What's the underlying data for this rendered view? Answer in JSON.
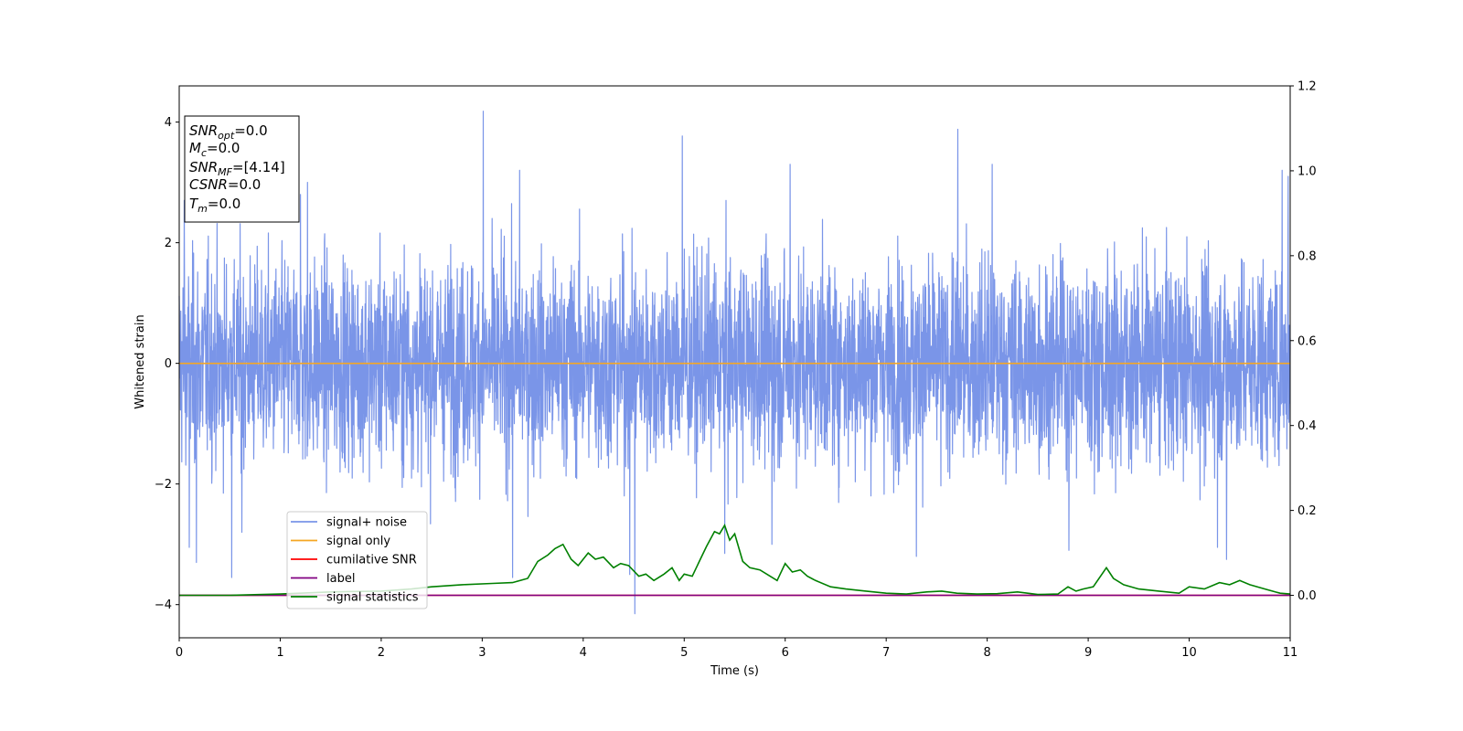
{
  "chart_data": {
    "type": "line",
    "title": "",
    "xlabel": "Time (s)",
    "ylabel": "Whitened strain",
    "xlim": [
      0,
      11
    ],
    "ylim_left": [
      -4.55,
      4.6
    ],
    "ylim_right": [
      -0.1,
      1.2
    ],
    "x_ticks": [
      0,
      1,
      2,
      3,
      4,
      5,
      6,
      7,
      8,
      9,
      10,
      11
    ],
    "y_ticks_left": [
      -4,
      -2,
      0,
      2,
      4
    ],
    "y_ticks_left_labels": [
      "−4",
      "−2",
      "0",
      "2",
      "4"
    ],
    "y_ticks_right": [
      0.0,
      0.2,
      0.4,
      0.6,
      0.8,
      1.0,
      1.2
    ],
    "y_ticks_right_labels": [
      "0.0",
      "0.2",
      "0.4",
      "0.6",
      "0.8",
      "1.0",
      "1.2"
    ],
    "grid": false,
    "legend_position": "lower-left",
    "info_box": {
      "lines": [
        {
          "symbol": "SNR",
          "sub": "opt",
          "value": "=0.0"
        },
        {
          "symbol": "M",
          "sub": "c",
          "value": "=0.0"
        },
        {
          "symbol": "SNR",
          "sub": "MF",
          "value": "=[4.14]"
        },
        {
          "symbol": "CSNR",
          "sub": "",
          "value": "=0.0"
        },
        {
          "symbol": "T",
          "sub": "m",
          "value": "=0.0"
        }
      ]
    },
    "series": [
      {
        "name": "signal+ noise",
        "axis": "left",
        "color": "#7a95e8",
        "style": "noise",
        "spikes": [
          {
            "x": 0.1,
            "y": -3.05
          },
          {
            "x": 0.17,
            "y": -3.3
          },
          {
            "x": 0.52,
            "y": -3.55
          },
          {
            "x": 0.62,
            "y": -2.8
          },
          {
            "x": 1.2,
            "y": 2.8
          },
          {
            "x": 1.27,
            "y": 3.0
          },
          {
            "x": 3.01,
            "y": 4.18
          },
          {
            "x": 3.3,
            "y": -3.55
          },
          {
            "x": 3.37,
            "y": 3.2
          },
          {
            "x": 4.46,
            "y": -3.5
          },
          {
            "x": 4.51,
            "y": -4.15
          },
          {
            "x": 4.98,
            "y": 3.77
          },
          {
            "x": 5.4,
            "y": -3.15
          },
          {
            "x": 5.87,
            "y": -3.0
          },
          {
            "x": 6.05,
            "y": 3.3
          },
          {
            "x": 7.3,
            "y": -3.2
          },
          {
            "x": 7.71,
            "y": 3.88
          },
          {
            "x": 8.05,
            "y": 3.3
          },
          {
            "x": 8.81,
            "y": -3.1
          },
          {
            "x": 10.28,
            "y": -3.05
          },
          {
            "x": 10.37,
            "y": -3.25
          },
          {
            "x": 10.92,
            "y": 3.2
          },
          {
            "x": 10.98,
            "y": 3.1
          },
          {
            "x": 0.05,
            "y": 2.7
          }
        ]
      },
      {
        "name": "signal only",
        "axis": "left",
        "color": "#f5a623",
        "x": [
          0,
          11
        ],
        "y": [
          0,
          0
        ]
      },
      {
        "name": "cumilative SNR",
        "axis": "right",
        "color": "#ff0000",
        "x": [
          0,
          11
        ],
        "y": [
          0,
          0
        ]
      },
      {
        "name": "label",
        "axis": "right",
        "color": "#800080",
        "x": [
          0,
          11
        ],
        "y": [
          0,
          0
        ]
      },
      {
        "name": "signal statistics",
        "axis": "right",
        "color": "#008000",
        "x": [
          0,
          0.5,
          1.0,
          1.5,
          2.0,
          2.3,
          2.5,
          2.8,
          3.1,
          3.3,
          3.45,
          3.55,
          3.65,
          3.72,
          3.8,
          3.88,
          3.95,
          4.05,
          4.12,
          4.2,
          4.3,
          4.37,
          4.45,
          4.55,
          4.62,
          4.7,
          4.8,
          4.88,
          4.95,
          5.0,
          5.08,
          5.15,
          5.22,
          5.3,
          5.35,
          5.4,
          5.45,
          5.5,
          5.58,
          5.65,
          5.75,
          5.85,
          5.92,
          6.0,
          6.07,
          6.15,
          6.22,
          6.3,
          6.45,
          6.6,
          6.8,
          7.0,
          7.2,
          7.4,
          7.55,
          7.7,
          7.9,
          8.1,
          8.3,
          8.5,
          8.7,
          8.8,
          8.88,
          8.95,
          9.05,
          9.18,
          9.25,
          9.35,
          9.5,
          9.7,
          9.9,
          10.0,
          10.15,
          10.3,
          10.4,
          10.5,
          10.6,
          10.75,
          10.9,
          11.0
        ],
        "y": [
          0.0,
          0.0,
          0.003,
          0.008,
          0.01,
          0.015,
          0.02,
          0.025,
          0.028,
          0.03,
          0.04,
          0.08,
          0.095,
          0.11,
          0.12,
          0.085,
          0.07,
          0.1,
          0.085,
          0.09,
          0.065,
          0.075,
          0.07,
          0.045,
          0.05,
          0.035,
          0.05,
          0.065,
          0.035,
          0.05,
          0.045,
          0.08,
          0.115,
          0.15,
          0.145,
          0.165,
          0.13,
          0.145,
          0.08,
          0.065,
          0.06,
          0.045,
          0.035,
          0.075,
          0.055,
          0.06,
          0.045,
          0.035,
          0.02,
          0.015,
          0.01,
          0.005,
          0.003,
          0.008,
          0.01,
          0.005,
          0.003,
          0.004,
          0.008,
          0.002,
          0.003,
          0.02,
          0.01,
          0.015,
          0.02,
          0.065,
          0.04,
          0.025,
          0.015,
          0.01,
          0.005,
          0.02,
          0.015,
          0.03,
          0.025,
          0.035,
          0.025,
          0.015,
          0.005,
          0.003
        ]
      }
    ]
  }
}
